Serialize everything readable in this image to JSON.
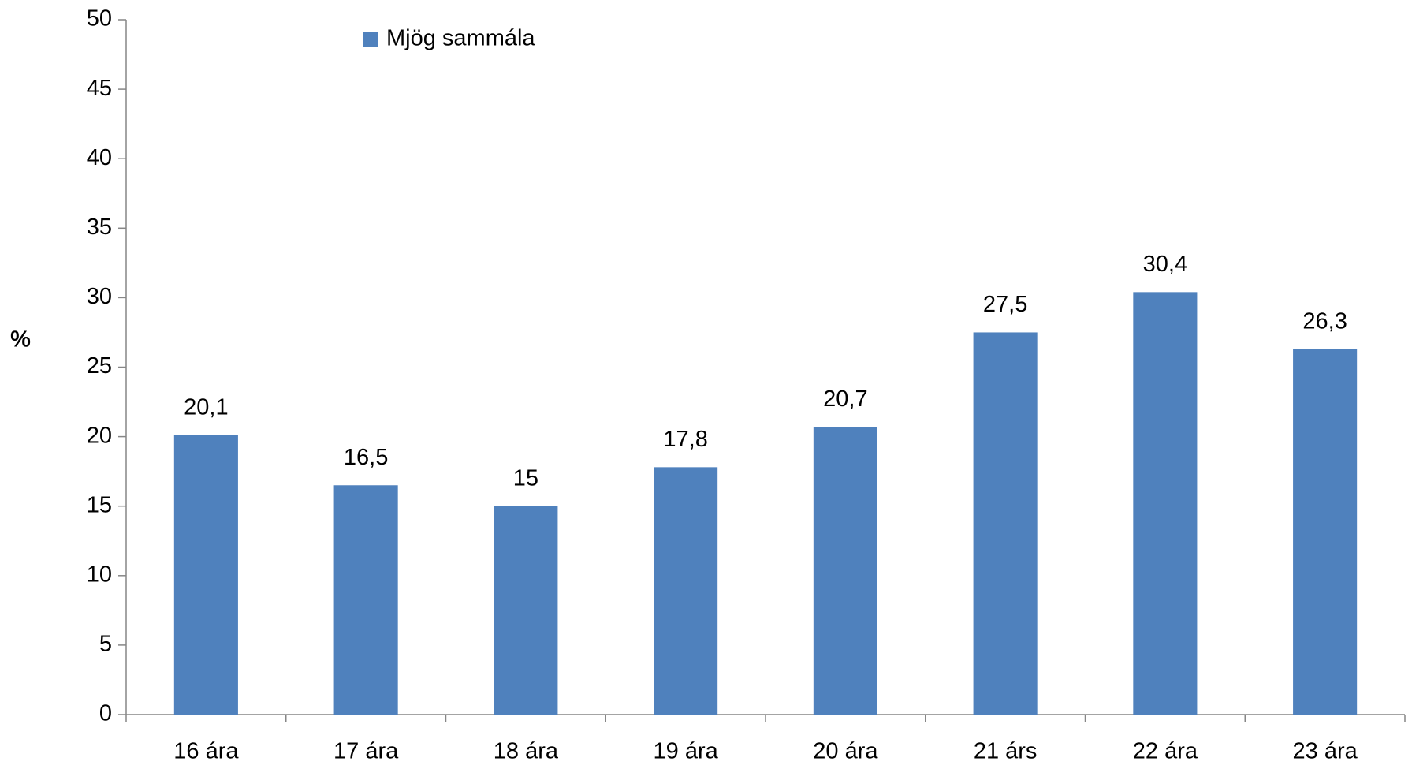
{
  "chart_data": {
    "type": "bar",
    "y_label": "%",
    "categories": [
      "16 ára",
      "17 ára",
      "18 ára",
      "19 ára",
      "20 ára",
      "21 árs",
      "22 ára",
      "23 ára"
    ],
    "series": [
      {
        "name": "Mjög sammála",
        "color": "#4f81bd",
        "values": [
          20.1,
          16.5,
          15,
          17.8,
          20.7,
          27.5,
          30.4,
          26.3
        ],
        "value_labels": [
          "20,1",
          "16,5",
          "15",
          "17,8",
          "20,7",
          "27,5",
          "30,4",
          "26,3"
        ]
      }
    ],
    "ylim": [
      0,
      50
    ],
    "yticks": [
      0,
      5,
      10,
      15,
      20,
      25,
      30,
      35,
      40,
      45,
      50
    ],
    "grid": false,
    "legend": "top-left"
  }
}
